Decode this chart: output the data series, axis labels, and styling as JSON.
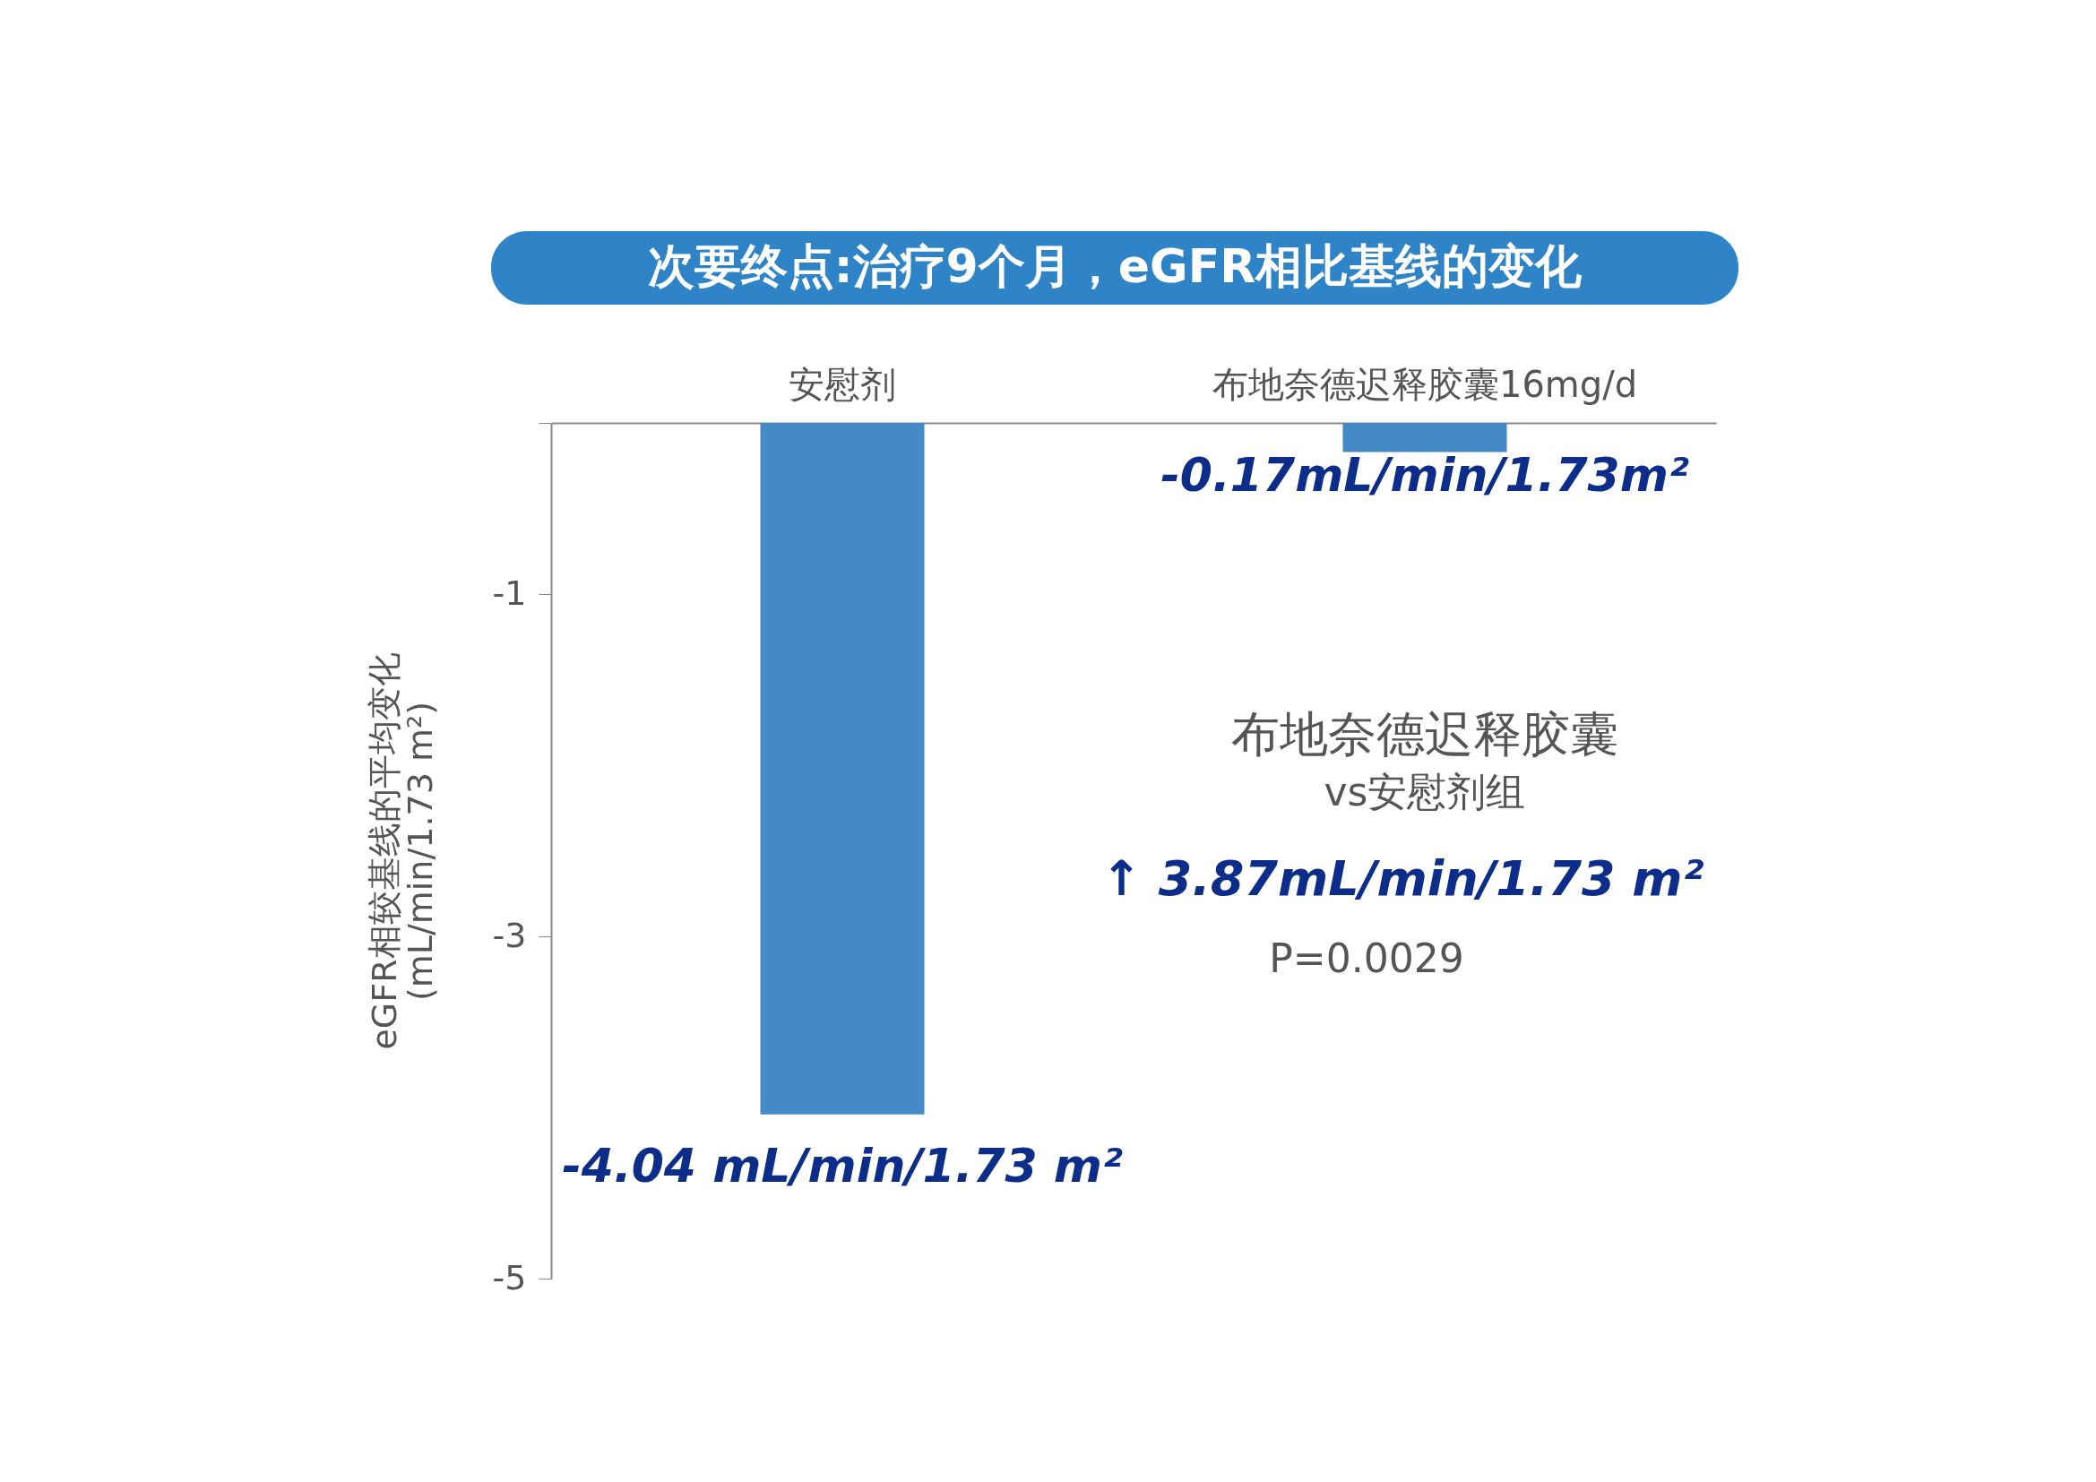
{
  "chart_data": {
    "type": "bar",
    "title": "次要终点:治疗9个月，eGFR相比基线的变化",
    "categories": [
      "安慰剂",
      "布地奈德迟释胶囊16mg/d"
    ],
    "values": [
      -4.04,
      -0.17
    ],
    "color": "#448ac6",
    "value_labels": [
      "-4.04 mL/min/1.73 m²",
      "-0.17mL/min/1.73m²"
    ],
    "ylabel": "eGFR相较基线的平均变化\n(mL/min/1.73 m²)",
    "ylim": [
      -5,
      0
    ],
    "yticks": [
      {
        "value": 0,
        "label": null
      },
      -1,
      -3,
      -5
    ],
    "annotations": [
      "布地奈德迟释胶囊",
      "vs安慰剂组",
      "↑ 3.87mL/min/1.73 m²",
      "P=0.0029"
    ],
    "grid": false
  }
}
